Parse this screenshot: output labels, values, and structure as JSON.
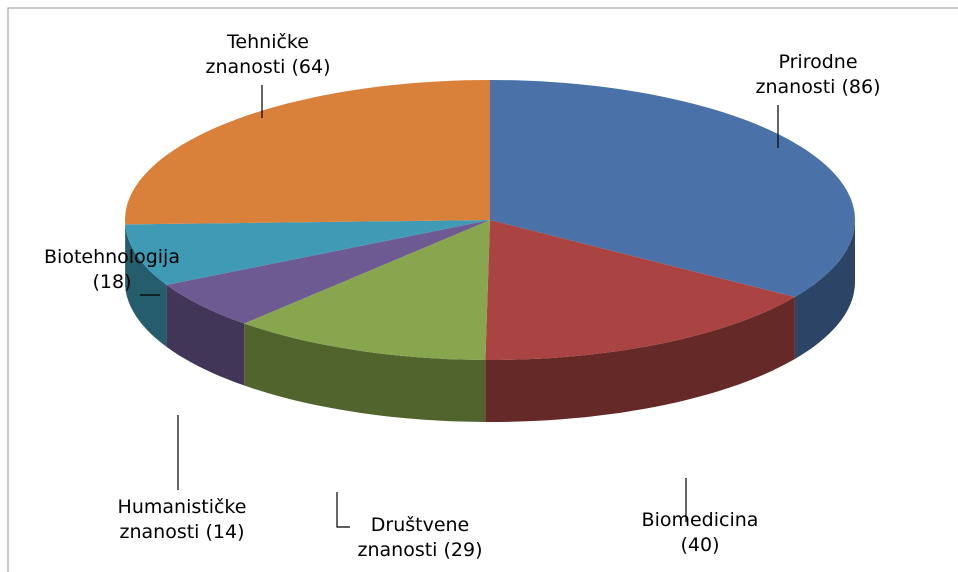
{
  "chart_data": {
    "type": "pie",
    "values": [
      86,
      40,
      29,
      14,
      18,
      64
    ],
    "value_labels": [
      "Prirodne znanosti (86)",
      "Biomedicina (40)",
      "Društvene znanosti (29)",
      "Humanističke znanosti (14)",
      "Biotehnologija (18)",
      "Tehničke znanosti (64)"
    ],
    "colors": [
      "#4a72a8",
      "#a94442",
      "#87a64d",
      "#6d5a92",
      "#3f9bb5",
      "#d9803a"
    ]
  }
}
